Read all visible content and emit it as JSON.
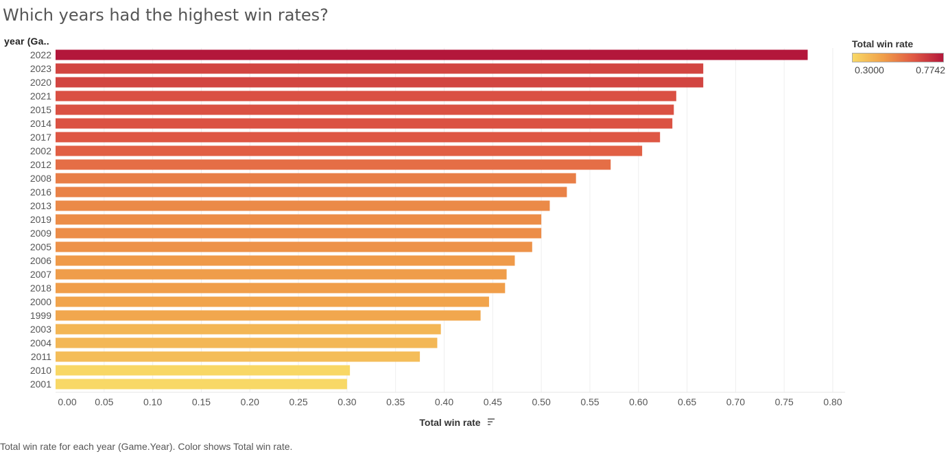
{
  "title": "Which years had the highest win rates?",
  "row_header": "year (Ga..",
  "caption": "Total win rate for each year (Game.Year).  Color shows Total win rate.",
  "legend": {
    "title": "Total win rate",
    "min_label": "0.3000",
    "max_label": "0.7742",
    "min_color": "#f8d866",
    "max_color": "#b3173b"
  },
  "chart_data": {
    "type": "bar",
    "orientation": "horizontal",
    "categories": [
      "2022",
      "2023",
      "2020",
      "2021",
      "2015",
      "2014",
      "2017",
      "2002",
      "2012",
      "2008",
      "2016",
      "2013",
      "2019",
      "2009",
      "2005",
      "2006",
      "2007",
      "2018",
      "2000",
      "1999",
      "2003",
      "2004",
      "2011",
      "2010",
      "2001"
    ],
    "values": [
      0.7742,
      0.6667,
      0.6667,
      0.6389,
      0.6364,
      0.6349,
      0.6222,
      0.6038,
      0.5714,
      0.5357,
      0.5263,
      0.5087,
      0.5,
      0.5,
      0.4906,
      0.4727,
      0.4643,
      0.4627,
      0.4462,
      0.4375,
      0.3966,
      0.3929,
      0.375,
      0.303,
      0.3
    ],
    "xlabel": "Total win rate",
    "ylabel": "year (Ga..",
    "xlim": [
      0,
      0.8
    ],
    "xticks": [
      "0.00",
      "0.05",
      "0.10",
      "0.15",
      "0.20",
      "0.25",
      "0.30",
      "0.35",
      "0.40",
      "0.45",
      "0.50",
      "0.55",
      "0.60",
      "0.65",
      "0.70",
      "0.75",
      "0.80"
    ],
    "grid": "vertical",
    "legend_placement": "top-right",
    "color_scale": [
      "#f8d866",
      "#f0a04a",
      "#e05a44",
      "#b3173b"
    ]
  }
}
